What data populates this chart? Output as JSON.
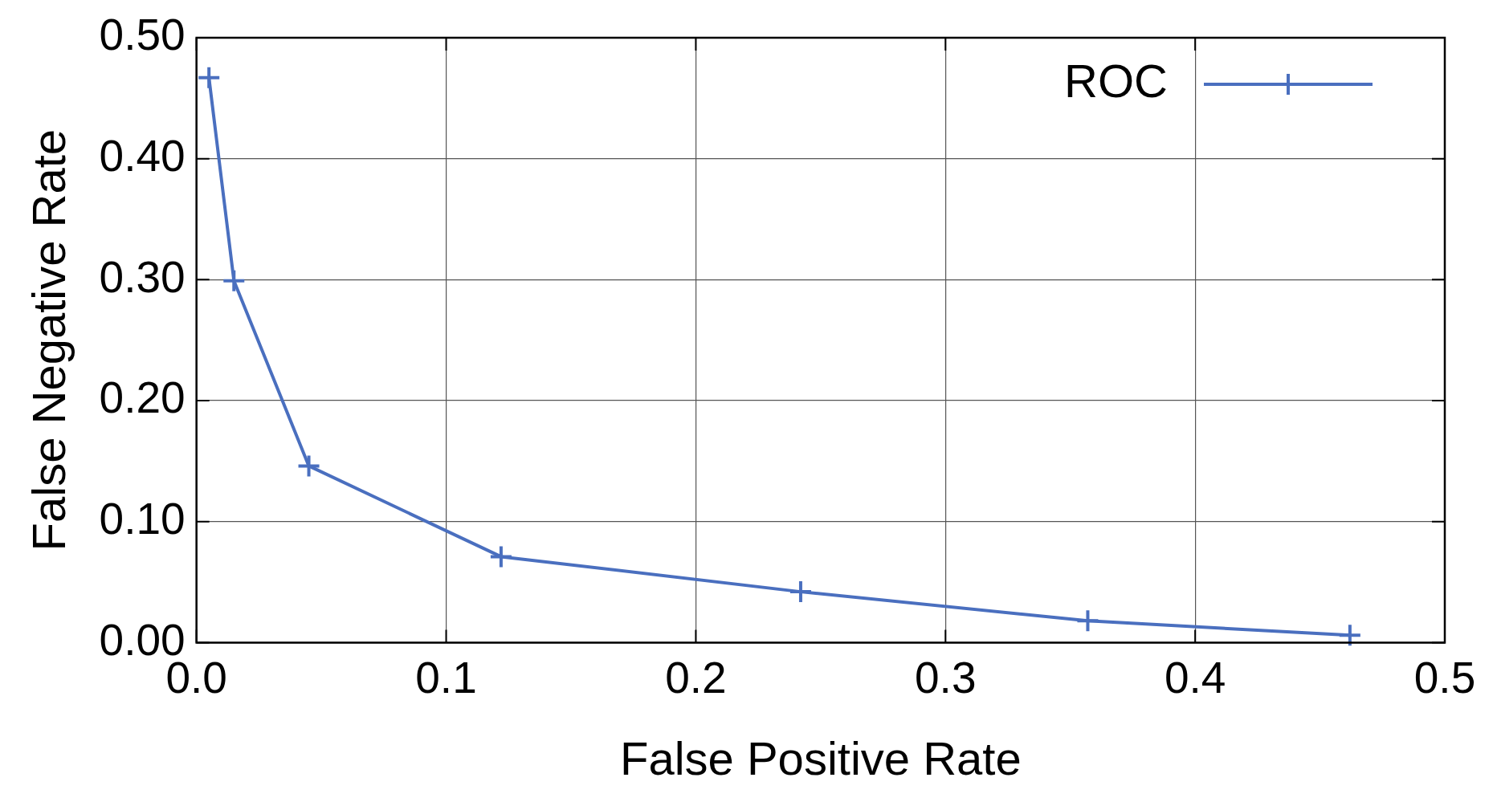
{
  "chart_data": {
    "type": "line",
    "xlabel": "False Positive Rate",
    "ylabel": "False Negative Rate",
    "x": [
      0.005,
      0.015,
      0.045,
      0.122,
      0.242,
      0.357,
      0.462
    ],
    "series": [
      {
        "name": "ROC",
        "color": "#4a6fbf",
        "values": [
          0.467,
          0.299,
          0.146,
          0.071,
          0.042,
          0.018,
          0.006
        ]
      }
    ],
    "xlim": [
      0,
      0.5
    ],
    "ylim": [
      0,
      0.5
    ],
    "xticks": [
      {
        "value": 0,
        "label": "0.0"
      },
      {
        "value": 0.1,
        "label": "0.1"
      },
      {
        "value": 0.2,
        "label": "0.2"
      },
      {
        "value": 0.3,
        "label": "0.3"
      },
      {
        "value": 0.4,
        "label": "0.4"
      },
      {
        "value": 0.5,
        "label": "0.5"
      }
    ],
    "yticks": [
      {
        "value": 0,
        "label": "0.00"
      },
      {
        "value": 0.1,
        "label": "0.10"
      },
      {
        "value": 0.2,
        "label": "0.20"
      },
      {
        "value": 0.3,
        "label": "0.30"
      },
      {
        "value": 0.4,
        "label": "0.40"
      },
      {
        "value": 0.5,
        "label": "0.50"
      }
    ],
    "grid": true,
    "legend": "top right",
    "marker": "cross",
    "line_style": "solid"
  }
}
